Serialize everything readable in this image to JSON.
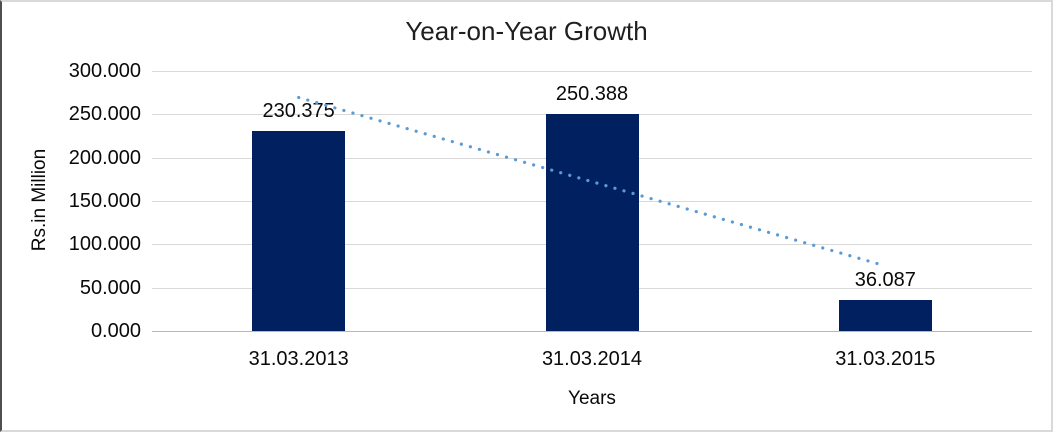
{
  "chart_data": {
    "type": "bar",
    "title": "Year-on-Year Growth",
    "categories": [
      "31.03.2013",
      "31.03.2014",
      "31.03.2015"
    ],
    "values": [
      230.375,
      250.388,
      36.087
    ],
    "value_labels": [
      "230.375",
      "250.388",
      "36.087"
    ],
    "xlabel": "Years",
    "ylabel": "Rs.in Million",
    "ylim": [
      0,
      300
    ],
    "ytick_labels": [
      "0.000",
      "50.000",
      "100.000",
      "150.000",
      "200.000",
      "250.000",
      "300.000"
    ],
    "grid": true,
    "legend": "none",
    "bar_color": "#002060",
    "gridline_color": "#d9d9d9",
    "axis_line_color": "#b7b7b7",
    "trendline": {
      "type": "linear",
      "style": "dotted",
      "color": "#5b9bd5",
      "start_value": 269.43,
      "end_value": 75.14
    }
  }
}
